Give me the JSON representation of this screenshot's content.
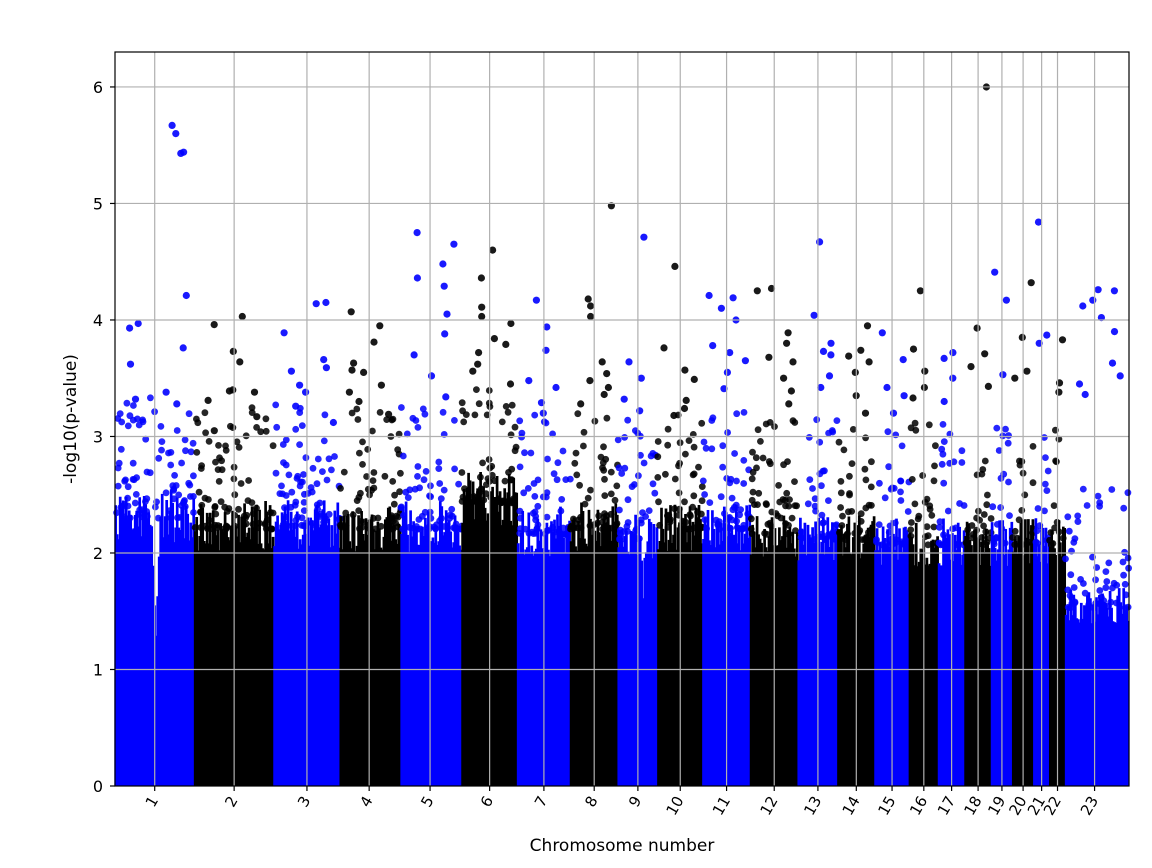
{
  "chart_data": {
    "type": "scatter",
    "title": "",
    "xlabel": "Chromosome number",
    "ylabel": "-log10(p-value)",
    "ylim": [
      0,
      6.3
    ],
    "yticks": [
      0,
      1,
      2,
      3,
      4,
      5,
      6
    ],
    "grid": true,
    "legend": "none",
    "colors": {
      "odd": "#0000ff",
      "even": "#000000"
    },
    "chromosomes": [
      {
        "label": "1",
        "start": 0.0,
        "end": 3.0,
        "center": 1.5,
        "color": "#0000ff",
        "cap": 2.55,
        "density": 1.0,
        "peaks": [
          5.67,
          5.6,
          5.44,
          5.43,
          4.21,
          3.97,
          3.93,
          3.76,
          3.62,
          3.38,
          3.32,
          3.28
        ],
        "dip": {
          "at": 1.55,
          "depth": 1.25
        }
      },
      {
        "label": "2",
        "start": 3.0,
        "end": 6.0,
        "center": 4.5,
        "color": "#000000",
        "cap": 2.45,
        "density": 1.0,
        "peaks": [
          4.03,
          3.96,
          3.73,
          3.64,
          3.4,
          3.39,
          3.38,
          3.31,
          3.17,
          3.05
        ]
      },
      {
        "label": "3",
        "start": 6.0,
        "end": 8.5,
        "center": 7.25,
        "color": "#0000ff",
        "cap": 2.48,
        "density": 1.0,
        "peaks": [
          4.15,
          4.14,
          3.89,
          3.66,
          3.59,
          3.56,
          3.44,
          3.38,
          3.26,
          3.12
        ]
      },
      {
        "label": "4",
        "start": 8.5,
        "end": 10.8,
        "center": 9.6,
        "color": "#000000",
        "cap": 2.45,
        "density": 1.0,
        "peaks": [
          4.07,
          3.95,
          3.81,
          3.63,
          3.57,
          3.55,
          3.44,
          3.38,
          3.3,
          3.19
        ]
      },
      {
        "label": "5",
        "start": 10.8,
        "end": 13.1,
        "center": 11.9,
        "color": "#0000ff",
        "cap": 2.45,
        "density": 1.0,
        "peaks": [
          4.75,
          4.65,
          4.48,
          4.36,
          4.29,
          4.05,
          3.88,
          3.7,
          3.52,
          3.34
        ]
      },
      {
        "label": "6",
        "start": 13.1,
        "end": 15.2,
        "center": 14.15,
        "color": "#000000",
        "cap": 2.7,
        "density": 1.1,
        "peaks": [
          4.6,
          4.36,
          4.11,
          4.03,
          3.97,
          3.84,
          3.79,
          3.72,
          3.62,
          3.56,
          3.45
        ]
      },
      {
        "label": "7",
        "start": 15.2,
        "end": 17.2,
        "center": 16.2,
        "color": "#0000ff",
        "cap": 2.4,
        "density": 1.0,
        "peaks": [
          4.17,
          3.94,
          3.74,
          3.48,
          3.42,
          3.29,
          3.2
        ]
      },
      {
        "label": "8",
        "start": 17.2,
        "end": 19.0,
        "center": 18.1,
        "color": "#000000",
        "cap": 2.45,
        "density": 1.0,
        "peaks": [
          4.98,
          4.18,
          4.12,
          4.03,
          3.64,
          3.54,
          3.48,
          3.42,
          3.36,
          3.28
        ]
      },
      {
        "label": "9",
        "start": 19.0,
        "end": 20.5,
        "center": 19.75,
        "color": "#0000ff",
        "cap": 2.35,
        "density": 0.95,
        "peaks": [
          4.71,
          3.64,
          3.5,
          3.32,
          3.22
        ],
        "dip": {
          "at": 19.95,
          "depth": 1.6
        }
      },
      {
        "label": "10",
        "start": 20.5,
        "end": 22.2,
        "center": 21.35,
        "color": "#000000",
        "cap": 2.45,
        "density": 1.0,
        "peaks": [
          4.46,
          3.76,
          3.57,
          3.49,
          3.31,
          3.24,
          3.18
        ]
      },
      {
        "label": "11",
        "start": 22.2,
        "end": 24.0,
        "center": 23.1,
        "color": "#0000ff",
        "cap": 2.45,
        "density": 1.0,
        "peaks": [
          4.21,
          4.19,
          4.1,
          4.0,
          3.78,
          3.72,
          3.65,
          3.55,
          3.41
        ]
      },
      {
        "label": "12",
        "start": 24.0,
        "end": 25.8,
        "center": 24.9,
        "color": "#000000",
        "cap": 2.4,
        "density": 1.0,
        "peaks": [
          4.27,
          4.25,
          3.89,
          3.8,
          3.68,
          3.64,
          3.5,
          3.39,
          3.28
        ]
      },
      {
        "label": "13",
        "start": 25.8,
        "end": 27.3,
        "center": 26.55,
        "color": "#0000ff",
        "cap": 2.35,
        "density": 0.95,
        "peaks": [
          4.67,
          4.04,
          3.8,
          3.73,
          3.7,
          3.52,
          3.42
        ]
      },
      {
        "label": "14",
        "start": 27.3,
        "end": 28.7,
        "center": 28.0,
        "color": "#000000",
        "cap": 2.35,
        "density": 0.95,
        "peaks": [
          3.95,
          3.74,
          3.69,
          3.64,
          3.55,
          3.35,
          3.2
        ]
      },
      {
        "label": "15",
        "start": 28.7,
        "end": 30.0,
        "center": 29.35,
        "color": "#0000ff",
        "cap": 2.3,
        "density": 0.9,
        "peaks": [
          3.89,
          3.66,
          3.42,
          3.35,
          3.2
        ]
      },
      {
        "label": "16",
        "start": 30.0,
        "end": 31.1,
        "center": 30.55,
        "color": "#000000",
        "cap": 2.3,
        "density": 0.85,
        "peaks": [
          4.25,
          3.75,
          3.56,
          3.42,
          3.33
        ]
      },
      {
        "label": "17",
        "start": 31.1,
        "end": 32.1,
        "center": 31.6,
        "color": "#0000ff",
        "cap": 2.3,
        "density": 0.85,
        "peaks": [
          3.72,
          3.67,
          3.5,
          3.3
        ]
      },
      {
        "label": "18",
        "start": 32.1,
        "end": 33.1,
        "center": 32.6,
        "color": "#000000",
        "cap": 2.3,
        "density": 0.85,
        "peaks": [
          6.0,
          3.93,
          3.71,
          3.6,
          3.43
        ]
      },
      {
        "label": "19",
        "start": 33.1,
        "end": 33.9,
        "center": 33.5,
        "color": "#0000ff",
        "cap": 2.3,
        "density": 0.8,
        "peaks": [
          4.41,
          4.17,
          3.53
        ]
      },
      {
        "label": "20",
        "start": 33.9,
        "end": 34.7,
        "center": 34.3,
        "color": "#000000",
        "cap": 2.3,
        "density": 0.8,
        "peaks": [
          4.32,
          3.85,
          3.56,
          3.5
        ]
      },
      {
        "label": "21",
        "start": 34.7,
        "end": 35.3,
        "center": 35.0,
        "color": "#0000ff",
        "cap": 2.3,
        "density": 0.75,
        "peaks": [
          4.84,
          3.87,
          3.8
        ]
      },
      {
        "label": "22",
        "start": 35.3,
        "end": 35.9,
        "center": 35.6,
        "color": "#000000",
        "cap": 2.3,
        "density": 0.75,
        "peaks": [
          3.83,
          3.46,
          3.38
        ]
      },
      {
        "label": "23",
        "start": 35.9,
        "end": 38.3,
        "center": 37.0,
        "color": "#0000ff",
        "cap": 1.7,
        "density": 0.85,
        "peaks": [
          4.26,
          4.25,
          4.17,
          4.12,
          4.02,
          3.9,
          3.63,
          3.52,
          3.45,
          3.36
        ]
      }
    ],
    "xlim": [
      0,
      24.9
    ]
  }
}
